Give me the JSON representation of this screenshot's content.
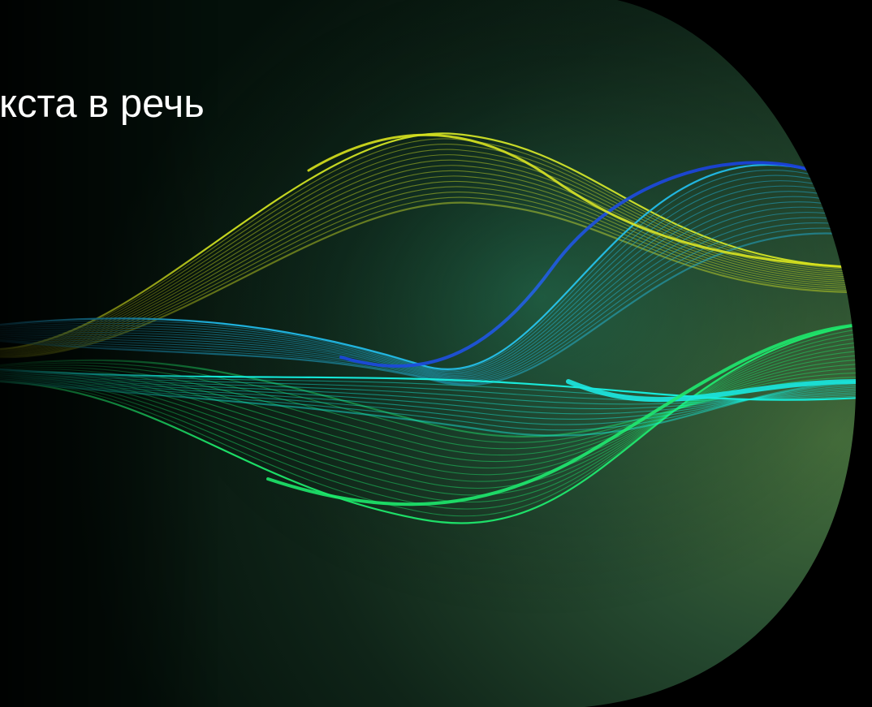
{
  "title": "кста в речь",
  "colors": {
    "background": "#000000",
    "backdrop_dark": "#0b1a12",
    "backdrop_light": "#3f6a3c",
    "wave_yellow": "#d8e21a",
    "wave_green": "#1de86a",
    "wave_cyan": "#18e6e0",
    "wave_blue": "#1a3ee0",
    "title_text": "#ffffff"
  },
  "artwork": {
    "description_icon": "sound-wave-ribbons",
    "ribbons": [
      {
        "name": "yellow-green",
        "color": "#d0e020",
        "lines": 14
      },
      {
        "name": "cyan-blue",
        "color": "#20b8e8",
        "lines": 14
      },
      {
        "name": "green",
        "color": "#1de86a",
        "lines": 14
      },
      {
        "name": "cyan",
        "color": "#14f0e0",
        "lines": 10
      }
    ]
  }
}
